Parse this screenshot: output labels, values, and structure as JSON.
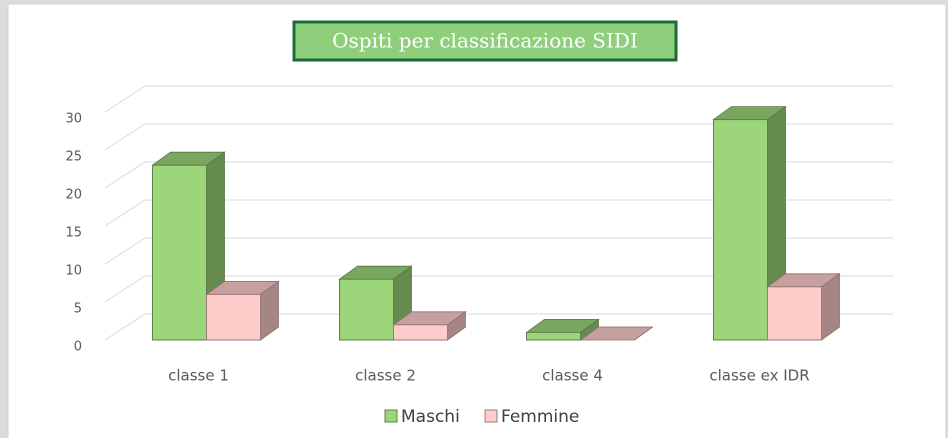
{
  "chart_data": {
    "type": "bar3d",
    "title": "Ospiti per classificazione SIDI",
    "categories": [
      "classe 1",
      "classe 2",
      "classe 4",
      "classe ex IDR"
    ],
    "series": [
      {
        "name": "Maschi",
        "color": "#9dd67a",
        "values": [
          23,
          8,
          1,
          29
        ]
      },
      {
        "name": "Femmine",
        "color": "#ffcccc",
        "values": [
          6,
          2,
          0,
          7
        ]
      }
    ],
    "ylim": [
      0,
      30
    ],
    "yticks": [
      0,
      5,
      10,
      15,
      20,
      25,
      30
    ],
    "grid": true,
    "legend": "bottom"
  }
}
